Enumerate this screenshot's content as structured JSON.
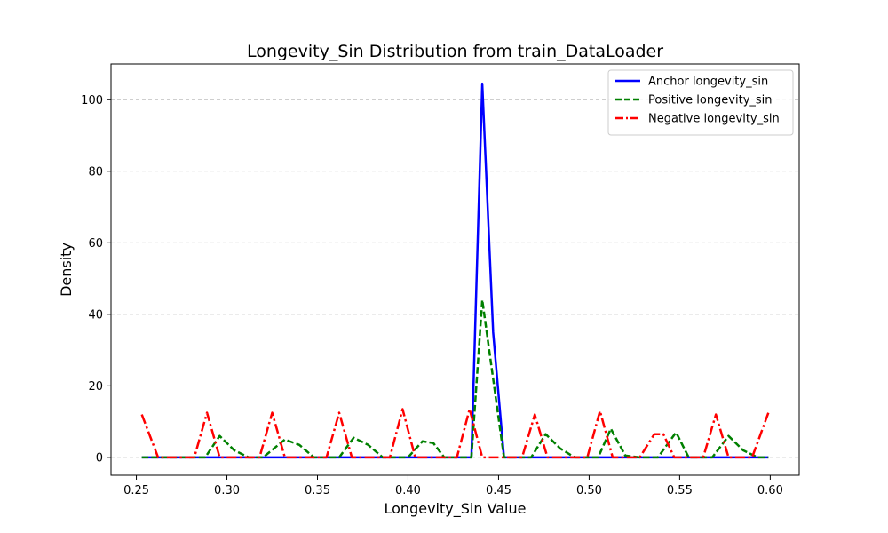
{
  "chart_data": {
    "type": "line",
    "title": "Longevity_Sin Distribution from train_DataLoader",
    "xlabel": "Longevity_Sin Value",
    "ylabel": "Density",
    "xlim": [
      0.236,
      0.616
    ],
    "ylim": [
      -5,
      110
    ],
    "xticks": [
      0.25,
      0.3,
      0.35,
      0.4,
      0.45,
      0.5,
      0.55,
      0.6
    ],
    "xtick_labels": [
      "0.25",
      "0.30",
      "0.35",
      "0.40",
      "0.45",
      "0.50",
      "0.55",
      "0.60"
    ],
    "yticks": [
      0,
      20,
      40,
      60,
      80,
      100
    ],
    "ytick_labels": [
      "0",
      "20",
      "40",
      "60",
      "80",
      "100"
    ],
    "grid": "y-dashed",
    "legend_position": "top-right",
    "series": [
      {
        "name": "Anchor longevity_sin",
        "color": "#0000ff",
        "dash": "solid",
        "x": [
          0.253,
          0.435,
          0.441,
          0.447,
          0.453,
          0.599
        ],
        "y": [
          0,
          0,
          104.5,
          35,
          0,
          0
        ]
      },
      {
        "name": "Positive longevity_sin",
        "color": "#008000",
        "dash": "dashed",
        "x": [
          0.253,
          0.288,
          0.296,
          0.304,
          0.312,
          0.32,
          0.332,
          0.34,
          0.348,
          0.362,
          0.37,
          0.378,
          0.386,
          0.4,
          0.408,
          0.414,
          0.42,
          0.435,
          0.441,
          0.453,
          0.468,
          0.476,
          0.484,
          0.492,
          0.505,
          0.512,
          0.52,
          0.528,
          0.538,
          0.548,
          0.555,
          0.568,
          0.577,
          0.585,
          0.593,
          0.599
        ],
        "y": [
          0,
          0,
          6,
          2,
          0,
          0,
          5,
          3.5,
          0,
          0,
          5.5,
          3.5,
          0,
          0,
          4.5,
          4,
          0,
          0,
          44,
          0,
          0,
          6.5,
          2.5,
          0,
          0,
          8,
          0.5,
          0,
          0,
          7,
          0,
          0,
          6,
          2,
          0,
          0
        ]
      },
      {
        "name": "Negative longevity_sin",
        "color": "#ff0000",
        "dash": "dashdot",
        "x": [
          0.253,
          0.262,
          0.282,
          0.289,
          0.296,
          0.318,
          0.325,
          0.332,
          0.355,
          0.362,
          0.369,
          0.39,
          0.397,
          0.404,
          0.427,
          0.434,
          0.441,
          0.463,
          0.47,
          0.477,
          0.499,
          0.506,
          0.513,
          0.528,
          0.536,
          0.541,
          0.547,
          0.563,
          0.57,
          0.577,
          0.59,
          0.599
        ],
        "y": [
          12,
          0,
          0,
          12.5,
          0,
          0,
          12.5,
          0,
          0,
          12.5,
          0,
          0,
          13.5,
          0,
          0,
          13.5,
          0,
          0,
          12,
          0,
          0,
          13,
          0,
          0,
          6.5,
          6.5,
          0,
          0,
          12,
          0,
          0,
          12.5
        ]
      }
    ]
  }
}
